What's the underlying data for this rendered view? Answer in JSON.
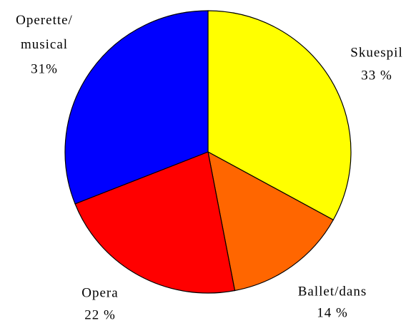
{
  "chart_data": {
    "type": "pie",
    "categories": [
      "Skuespil",
      "Ballet/dans",
      "Opera",
      "Operette/musical"
    ],
    "values": [
      33,
      14,
      22,
      31
    ],
    "value_labels": [
      "33 %",
      "14 %",
      "22 %",
      "31%"
    ],
    "colors": [
      "#ffff00",
      "#ff6600",
      "#ff0000",
      "#0000ff"
    ]
  }
}
